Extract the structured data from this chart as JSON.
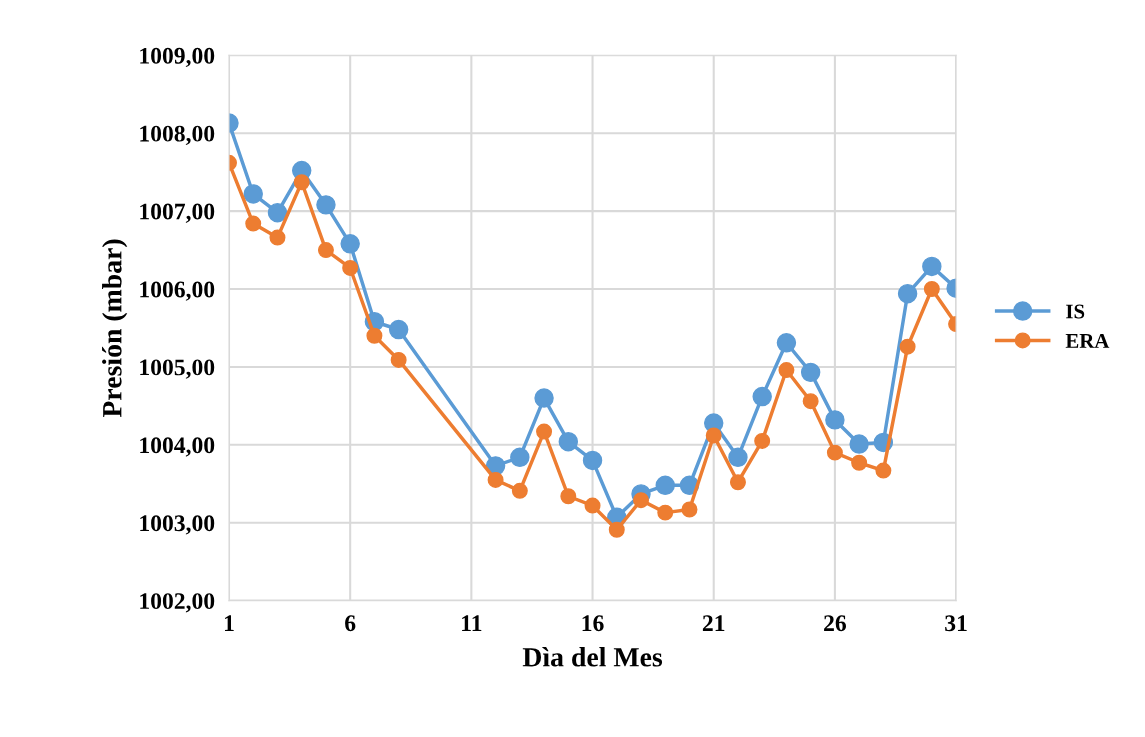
{
  "chart_data": {
    "type": "line",
    "xlabel": "Dìa del Mes",
    "ylabel": "Presión (mbar)",
    "x": [
      1,
      2,
      3,
      4,
      5,
      6,
      7,
      8,
      12,
      13,
      14,
      15,
      16,
      17,
      18,
      19,
      20,
      21,
      22,
      23,
      24,
      25,
      26,
      27,
      28,
      29,
      30,
      31
    ],
    "series": [
      {
        "name": "IS",
        "color": "#5b9bd5",
        "values": [
          1008.13,
          1007.22,
          1006.98,
          1007.52,
          1007.08,
          1006.58,
          1005.58,
          1005.48,
          1003.73,
          1003.84,
          1004.6,
          1004.04,
          1003.8,
          1003.07,
          1003.37,
          1003.48,
          1003.48,
          1004.28,
          1003.84,
          1004.62,
          1005.31,
          1004.93,
          1004.32,
          1004.01,
          1004.03,
          1005.94,
          1006.29,
          1006.01
        ]
      },
      {
        "name": "ERA",
        "color": "#ed7d31",
        "values": [
          1007.62,
          1006.84,
          1006.66,
          1007.37,
          1006.5,
          1006.27,
          1005.4,
          1005.09,
          1003.55,
          1003.41,
          1004.17,
          1003.34,
          1003.22,
          1002.91,
          1003.29,
          1003.13,
          1003.17,
          1004.12,
          1003.52,
          1004.05,
          1004.96,
          1004.56,
          1003.9,
          1003.77,
          1003.67,
          1005.26,
          1006.0,
          1005.55
        ]
      }
    ],
    "xlim": [
      1,
      31
    ],
    "xticks": [
      1,
      6,
      11,
      16,
      21,
      26,
      31
    ],
    "ylim": [
      1002,
      1009
    ],
    "yticks": [
      {
        "value": 1002,
        "label": "1002,00"
      },
      {
        "value": 1003,
        "label": "1003,00"
      },
      {
        "value": 1004,
        "label": "1004,00"
      },
      {
        "value": 1005,
        "label": "1005,00"
      },
      {
        "value": 1006,
        "label": "1006,00"
      },
      {
        "value": 1007,
        "label": "1007,00"
      },
      {
        "value": 1008,
        "label": "1008,00"
      },
      {
        "value": 1009,
        "label": "1009,00"
      }
    ],
    "grid": true,
    "legend": "right",
    "marker": "circle",
    "line_style": "solid"
  }
}
